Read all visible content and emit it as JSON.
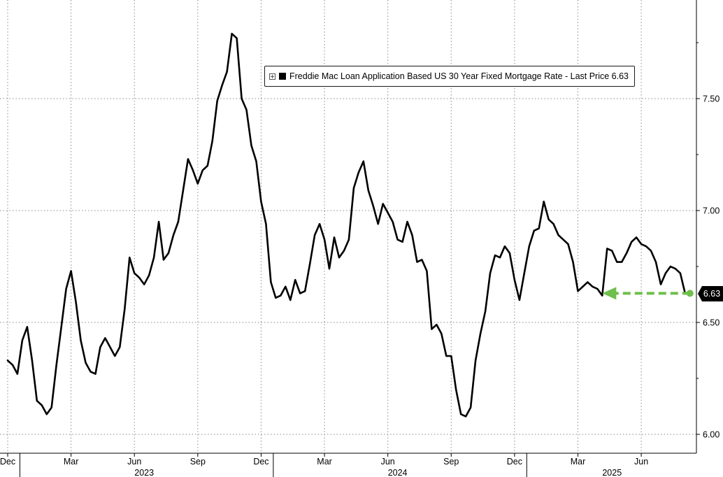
{
  "chart_data": {
    "type": "line",
    "title": "",
    "xlabel": "",
    "ylabel": "",
    "ylim": [
      5.97,
      7.89
    ],
    "y_ticks": [
      "6.00",
      "6.50",
      "7.00",
      "7.50"
    ],
    "y_tick_values": [
      6.0,
      6.5,
      7.0,
      7.5
    ],
    "x_month_ticks": [
      {
        "label": "Dec",
        "week": 0
      },
      {
        "label": "Mar",
        "week": 13
      },
      {
        "label": "Jun",
        "week": 26
      },
      {
        "label": "Sep",
        "week": 39
      },
      {
        "label": "Dec",
        "week": 52
      },
      {
        "label": "Mar",
        "week": 65
      },
      {
        "label": "Jun",
        "week": 78
      },
      {
        "label": "Sep",
        "week": 91
      },
      {
        "label": "Dec",
        "week": 104
      },
      {
        "label": "Mar",
        "week": 117
      },
      {
        "label": "Jun",
        "week": 130
      }
    ],
    "x_year_labels": [
      {
        "label": "2023",
        "week": 28
      },
      {
        "label": "2024",
        "week": 80
      },
      {
        "label": "2025",
        "week": 124
      }
    ],
    "x_year_dividers": [
      2.5,
      54.5,
      106.5
    ],
    "grid": true,
    "legend_position": "top-center",
    "series": [
      {
        "name": "Freddie Mac Loan Application Based US 30 Year Fixed Mortgage Rate - Last Price 6.63",
        "color": "#000000",
        "x_note": "weekly observations",
        "values": [
          6.33,
          6.31,
          6.27,
          6.42,
          6.48,
          6.33,
          6.15,
          6.13,
          6.09,
          6.12,
          6.31,
          6.48,
          6.65,
          6.73,
          6.59,
          6.42,
          6.32,
          6.28,
          6.27,
          6.39,
          6.43,
          6.39,
          6.35,
          6.39,
          6.56,
          6.79,
          6.72,
          6.7,
          6.67,
          6.71,
          6.79,
          6.95,
          6.78,
          6.81,
          6.89,
          6.95,
          7.09,
          7.23,
          7.18,
          7.12,
          7.18,
          7.2,
          7.31,
          7.49,
          7.56,
          7.62,
          7.79,
          7.77,
          7.5,
          7.45,
          7.29,
          7.22,
          7.04,
          6.94,
          6.68,
          6.61,
          6.62,
          6.66,
          6.6,
          6.69,
          6.63,
          6.64,
          6.76,
          6.89,
          6.94,
          6.87,
          6.74,
          6.88,
          6.79,
          6.82,
          6.87,
          7.1,
          7.17,
          7.22,
          7.09,
          7.02,
          6.94,
          7.03,
          6.99,
          6.95,
          6.87,
          6.86,
          6.95,
          6.89,
          6.77,
          6.78,
          6.73,
          6.47,
          6.49,
          6.45,
          6.35,
          6.35,
          6.2,
          6.09,
          6.08,
          6.12,
          6.33,
          6.45,
          6.55,
          6.72,
          6.8,
          6.79,
          6.84,
          6.81,
          6.69,
          6.6,
          6.72,
          6.84,
          6.91,
          6.92,
          7.04,
          6.96,
          6.94,
          6.89,
          6.87,
          6.85,
          6.77,
          6.64,
          6.66,
          6.68,
          6.66,
          6.65,
          6.62,
          6.83,
          6.82,
          6.77,
          6.77,
          6.81,
          6.86,
          6.88,
          6.85,
          6.84,
          6.82,
          6.77,
          6.67,
          6.72,
          6.75,
          6.74,
          6.72,
          6.63
        ]
      }
    ],
    "last_price_label": "6.63",
    "annotation": {
      "type": "arrow",
      "color": "#6ebf4b",
      "from_week": 140,
      "to_week": 122,
      "value": 6.63
    }
  }
}
